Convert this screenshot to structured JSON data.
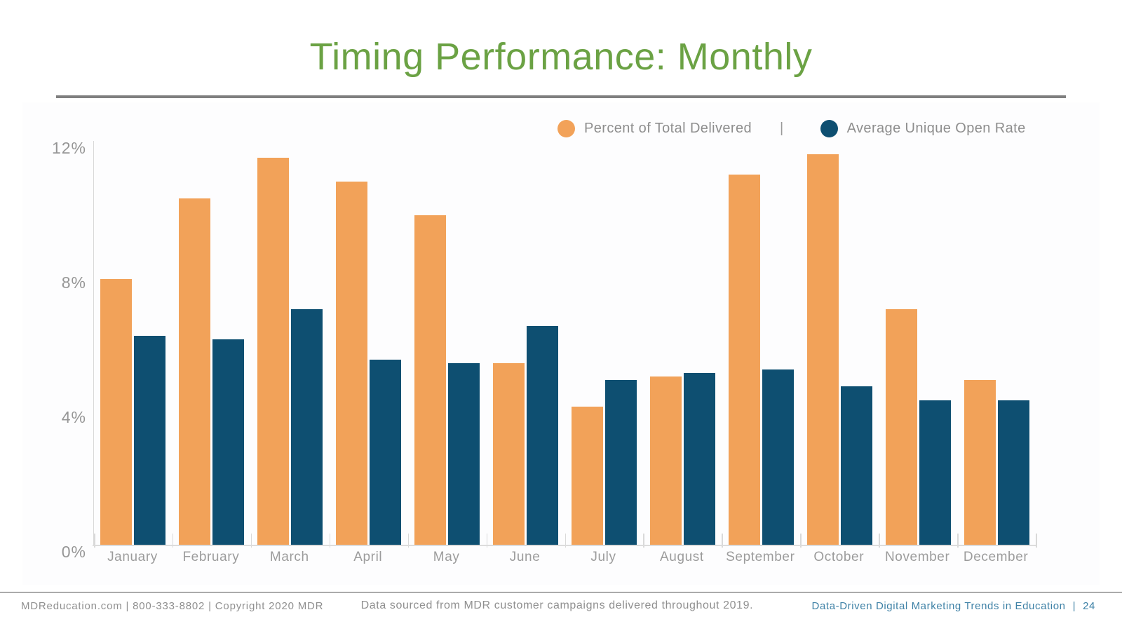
{
  "slide": {
    "title": "Timing Performance: Monthly",
    "footer": {
      "left": "MDReducation.com  |  800-333-8802  |  Copyright 2020 MDR",
      "center": "Data sourced from MDR customer campaigns delivered throughout 2019.",
      "right": "Data-Driven Digital Marketing Trends in Education",
      "separator": "|",
      "page_number": "24"
    }
  },
  "colors": {
    "title_green": "#6BA244",
    "bar_orange": "#F2A259",
    "bar_blue": "#0E4F71",
    "footer_teal": "#3E81A6",
    "axis_gray": "#d9d9d9",
    "text_gray": "#8e8e8e"
  },
  "legend": {
    "separator": "|"
  },
  "chart_data": {
    "type": "bar",
    "title": "Timing Performance: Monthly",
    "categories": [
      "January",
      "February",
      "March",
      "April",
      "May",
      "June",
      "July",
      "August",
      "September",
      "October",
      "November",
      "December"
    ],
    "series": [
      {
        "name": "Percent of Total Delivered",
        "color": "#F2A259",
        "values": [
          7.9,
          10.3,
          11.5,
          10.8,
          9.8,
          5.4,
          4.1,
          5.0,
          11.0,
          11.6,
          7.0,
          4.9
        ]
      },
      {
        "name": "Average Unique Open Rate",
        "color": "#0E4F71",
        "values": [
          6.2,
          6.1,
          7.0,
          5.5,
          5.4,
          6.5,
          4.9,
          5.1,
          5.2,
          4.7,
          4.3,
          4.3
        ]
      }
    ],
    "xlabel": "",
    "ylabel": "",
    "ylim": [
      0,
      12
    ],
    "yticks": [
      "12%",
      "8%",
      "4%",
      "0%"
    ],
    "grid": false,
    "legend_position": "top-right"
  }
}
